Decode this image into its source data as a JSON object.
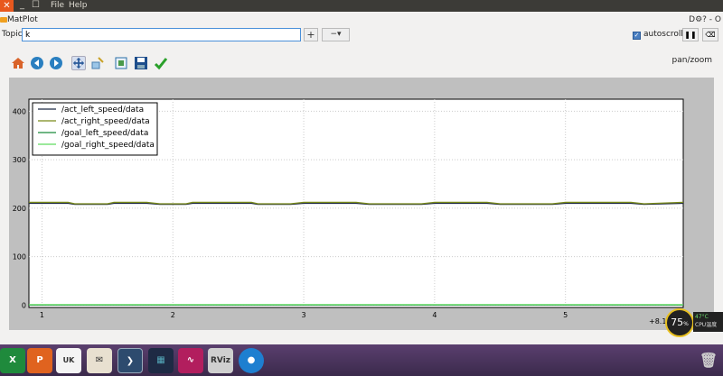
{
  "window": {
    "close_label": "✕",
    "min_label": "_",
    "max_label": "☐"
  },
  "menu": {
    "items": [
      "File",
      "Help"
    ]
  },
  "plugin": {
    "title": "MatPlot",
    "right_controls": "D⚙? - O"
  },
  "topic": {
    "label": "Topic",
    "value": "k",
    "add_label": "+",
    "remove_label": "−▾"
  },
  "autoscroll": {
    "label": "autoscroll",
    "checked": true
  },
  "controls": {
    "pause_label": "❚❚",
    "clear_label": "⌫"
  },
  "toolbar": {
    "icons": [
      "home-icon",
      "back-icon",
      "forward-icon",
      "pan-icon",
      "zoom-icon",
      "configure-icon",
      "save-icon",
      "edit-icon"
    ]
  },
  "mode": {
    "label": "pan/zoom"
  },
  "chart_data": {
    "type": "line",
    "x_tick_labels": [
      "1",
      "2",
      "3",
      "4",
      "5"
    ],
    "y_tick_labels": [
      "0",
      "100",
      "200",
      "300",
      "400"
    ],
    "xlim": [
      0.9,
      5.9
    ],
    "ylim": [
      -5,
      425
    ],
    "offset_label": "+8.1",
    "grid": true,
    "legend_position": "top-left",
    "series": [
      {
        "name": "/act_left_speed/data",
        "color": "#1f2a44",
        "values": [
          [
            0.9,
            210
          ],
          [
            1.2,
            210
          ],
          [
            1.25,
            208
          ],
          [
            1.5,
            208
          ],
          [
            1.55,
            210
          ],
          [
            1.8,
            210
          ],
          [
            1.9,
            208
          ],
          [
            2.1,
            208
          ],
          [
            2.15,
            210
          ],
          [
            2.6,
            210
          ],
          [
            2.65,
            208
          ],
          [
            2.9,
            208
          ],
          [
            3.0,
            210
          ],
          [
            3.4,
            210
          ],
          [
            3.5,
            208
          ],
          [
            3.9,
            208
          ],
          [
            4.0,
            210
          ],
          [
            4.4,
            210
          ],
          [
            4.5,
            208
          ],
          [
            4.9,
            208
          ],
          [
            5.0,
            210
          ],
          [
            5.5,
            210
          ],
          [
            5.6,
            208
          ],
          [
            5.9,
            210
          ]
        ]
      },
      {
        "name": "/act_right_speed/data",
        "color": "#7a8b1a",
        "values": [
          [
            0.9,
            212
          ],
          [
            1.2,
            212
          ],
          [
            1.25,
            209
          ],
          [
            1.5,
            209
          ],
          [
            1.55,
            212
          ],
          [
            1.8,
            212
          ],
          [
            1.9,
            209
          ],
          [
            2.1,
            209
          ],
          [
            2.15,
            212
          ],
          [
            2.6,
            212
          ],
          [
            2.65,
            209
          ],
          [
            2.9,
            209
          ],
          [
            3.0,
            212
          ],
          [
            3.4,
            212
          ],
          [
            3.5,
            209
          ],
          [
            3.9,
            209
          ],
          [
            4.0,
            212
          ],
          [
            4.4,
            212
          ],
          [
            4.5,
            209
          ],
          [
            4.9,
            209
          ],
          [
            5.0,
            212
          ],
          [
            5.5,
            212
          ],
          [
            5.6,
            209
          ],
          [
            5.9,
            212
          ]
        ]
      },
      {
        "name": "/goal_left_speed/data",
        "color": "#1a8a3a",
        "values": [
          [
            0.9,
            0
          ],
          [
            5.9,
            0
          ]
        ]
      },
      {
        "name": "/goal_right_speed/data",
        "color": "#5fdc5f",
        "values": [
          [
            0.9,
            1
          ],
          [
            5.9,
            1
          ]
        ]
      }
    ]
  },
  "cpu": {
    "percent": "75",
    "unit": "%",
    "temp": "47°C",
    "label": "CPU温度"
  },
  "dock": {
    "icons": [
      "spreadsheet-icon",
      "presentation-icon",
      "store-icon",
      "mail-icon",
      "terminal-icon",
      "dev-icon",
      "monitor-icon",
      "rviz-icon",
      "app-icon"
    ]
  },
  "dock_labels": {
    "rviz": "RViz",
    "uk": "UK"
  }
}
